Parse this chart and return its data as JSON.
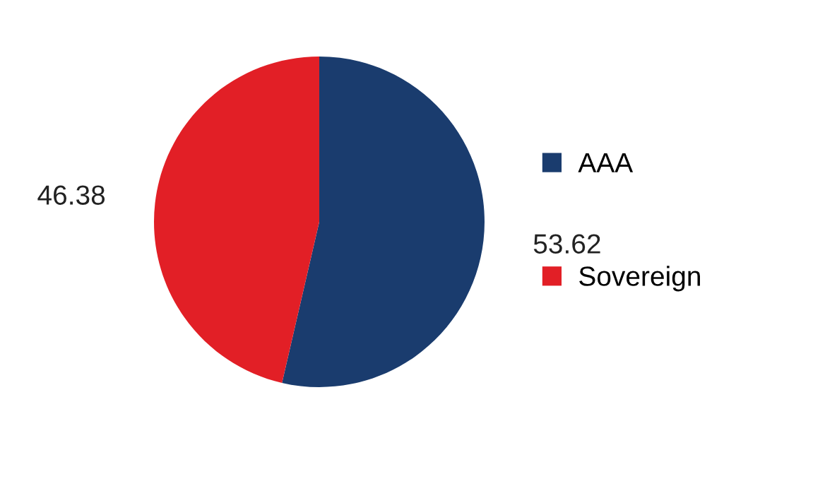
{
  "chart_data": {
    "type": "pie",
    "categories": [
      "AAA",
      "Sovereign"
    ],
    "values": [
      53.62,
      46.38
    ],
    "colors": [
      "#1a3c6e",
      "#e21f26"
    ],
    "data_labels": true,
    "legend": "right"
  }
}
